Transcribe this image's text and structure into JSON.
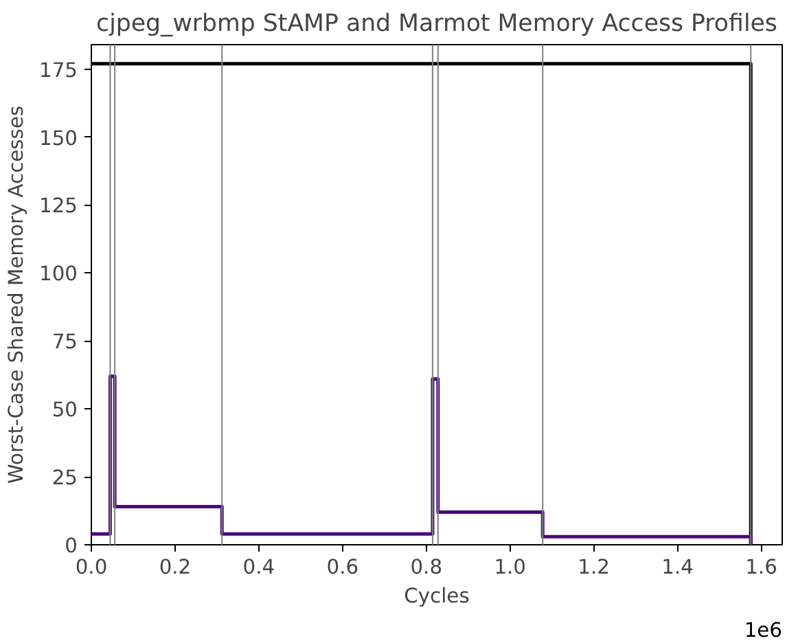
{
  "chart_data": {
    "type": "step",
    "title": "cjpeg_wrbmp StAMP and Marmot Memory Access Profiles",
    "xlabel": "Cycles",
    "ylabel": "Worst-Case Shared Memory Accesses",
    "xlim": [
      0,
      1.65
    ],
    "ylim": [
      0,
      184
    ],
    "xticks": [
      {
        "value": 0,
        "label": "0.0"
      },
      0.2,
      0.4,
      0.6,
      0.8,
      {
        "value": 1,
        "label": "1.0"
      },
      1.2,
      1.4,
      1.6
    ],
    "yticks": [
      0,
      25,
      50,
      75,
      100,
      125,
      150,
      175
    ],
    "series": [
      {
        "type": "line",
        "color": "#000000",
        "x": [
          0,
          1.575,
          1.575
        ],
        "values": [
          177,
          177,
          0
        ]
      },
      {
        "color": "#4b0a7d",
        "x": [
          0,
          0.045,
          0.056,
          0.312,
          0.815,
          0.828,
          1.078,
          1.575,
          1.575
        ],
        "values": [
          4,
          62,
          14,
          4,
          61,
          12,
          3,
          3,
          0
        ]
      }
    ],
    "ref_lines": [
      {
        "axis": "x",
        "value": 0.045,
        "color": "#808080"
      },
      {
        "axis": "x",
        "value": 0.056,
        "color": "#808080"
      },
      {
        "axis": "x",
        "value": 0.312,
        "color": "#808080"
      },
      {
        "axis": "x",
        "value": 0.815,
        "color": "#808080"
      },
      {
        "axis": "x",
        "value": 0.828,
        "color": "#808080"
      },
      {
        "axis": "x",
        "value": 1.078,
        "color": "#808080"
      },
      {
        "axis": "x",
        "value": 1.575,
        "color": "#808080"
      }
    ],
    "annotations": [
      "1e6"
    ],
    "grid": false
  }
}
